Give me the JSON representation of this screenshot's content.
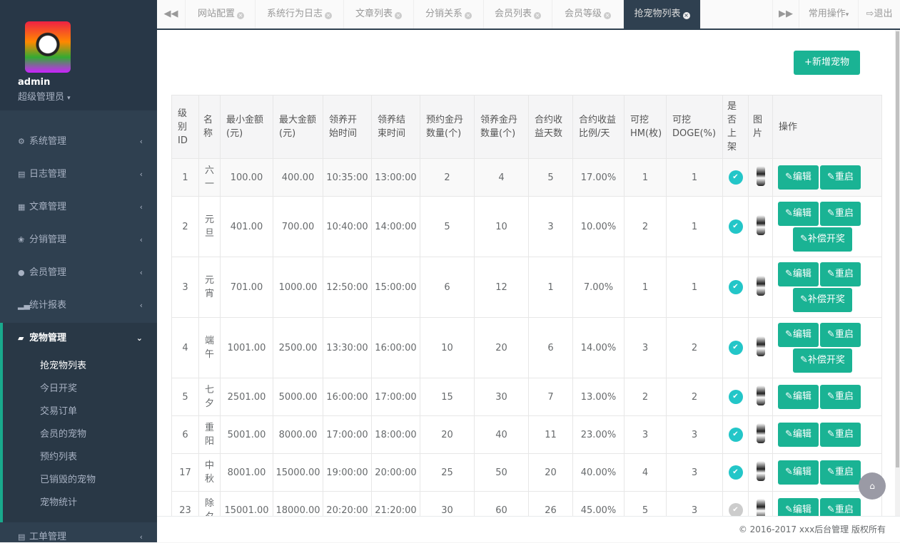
{
  "user": {
    "name": "admin",
    "role": "超级管理员"
  },
  "sidebar": {
    "items": [
      {
        "label": "系统管理",
        "icon": "gear-icon"
      },
      {
        "label": "日志管理",
        "icon": "list-icon"
      },
      {
        "label": "文章管理",
        "icon": "book-icon"
      },
      {
        "label": "分销管理",
        "icon": "cubes-icon"
      },
      {
        "label": "会员管理",
        "icon": "user-icon"
      },
      {
        "label": "统计报表",
        "icon": "signal-icon"
      },
      {
        "label": "宠物管理",
        "icon": "book-open-icon"
      },
      {
        "label": "工单管理",
        "icon": "list-icon"
      }
    ],
    "subitems": [
      "抢宠物列表",
      "今日开奖",
      "交易订单",
      "会员的宠物",
      "预约列表",
      "已销毁的宠物",
      "宠物统计"
    ]
  },
  "tabs": [
    "网站配置",
    "系统行为日志",
    "文章列表",
    "分销关系",
    "会员列表",
    "会员等级",
    "抢宠物列表"
  ],
  "topbar": {
    "common_ops": "常用操作",
    "logout": "退出"
  },
  "main": {
    "add_button": "+新增宠物",
    "columns": [
      "级别ID",
      "名称",
      "最小金额(元)",
      "最大金额(元)",
      "领养开始时间",
      "领养结束时间",
      "预约金丹数量(个)",
      "领养金丹数量(个)",
      "合约收益天数",
      "合约收益比例/天",
      "可挖HM(枚)",
      "可挖DOGE(%)",
      "是否上架",
      "图片",
      "操作"
    ],
    "actions": {
      "edit": "编辑",
      "restart": "重启",
      "compensate": "补偿开奖"
    },
    "rows": [
      {
        "id": "1",
        "name": "六一",
        "min": "100.00",
        "max": "400.00",
        "start": "10:35:00",
        "end": "13:00:00",
        "reserve": "2",
        "adopt": "4",
        "days": "5",
        "rate": "17.00%",
        "hm": "1",
        "doge": "1",
        "listed": true,
        "compensate": false
      },
      {
        "id": "2",
        "name": "元旦",
        "min": "401.00",
        "max": "700.00",
        "start": "10:40:00",
        "end": "14:00:00",
        "reserve": "5",
        "adopt": "10",
        "days": "3",
        "rate": "10.00%",
        "hm": "2",
        "doge": "1",
        "listed": true,
        "compensate": true
      },
      {
        "id": "3",
        "name": "元宵",
        "min": "701.00",
        "max": "1000.00",
        "start": "12:50:00",
        "end": "15:00:00",
        "reserve": "6",
        "adopt": "12",
        "days": "1",
        "rate": "7.00%",
        "hm": "1",
        "doge": "1",
        "listed": true,
        "compensate": true
      },
      {
        "id": "4",
        "name": "端午",
        "min": "1001.00",
        "max": "2500.00",
        "start": "13:30:00",
        "end": "16:00:00",
        "reserve": "10",
        "adopt": "20",
        "days": "6",
        "rate": "14.00%",
        "hm": "3",
        "doge": "2",
        "listed": true,
        "compensate": true
      },
      {
        "id": "5",
        "name": "七夕",
        "min": "2501.00",
        "max": "5000.00",
        "start": "16:00:00",
        "end": "17:00:00",
        "reserve": "15",
        "adopt": "30",
        "days": "7",
        "rate": "13.00%",
        "hm": "2",
        "doge": "2",
        "listed": true,
        "compensate": false
      },
      {
        "id": "6",
        "name": "重阳",
        "min": "5001.00",
        "max": "8000.00",
        "start": "17:00:00",
        "end": "18:00:00",
        "reserve": "20",
        "adopt": "40",
        "days": "11",
        "rate": "23.00%",
        "hm": "3",
        "doge": "3",
        "listed": true,
        "compensate": false
      },
      {
        "id": "17",
        "name": "中秋",
        "min": "8001.00",
        "max": "15000.00",
        "start": "19:00:00",
        "end": "20:00:00",
        "reserve": "25",
        "adopt": "50",
        "days": "20",
        "rate": "40.00%",
        "hm": "4",
        "doge": "3",
        "listed": true,
        "compensate": false
      },
      {
        "id": "23",
        "name": "除夕",
        "min": "15001.00",
        "max": "18000.00",
        "start": "20:20:00",
        "end": "21:20:00",
        "reserve": "30",
        "adopt": "60",
        "days": "26",
        "rate": "45.00%",
        "hm": "5",
        "doge": "3",
        "listed": false,
        "compensate": false
      }
    ]
  },
  "footer": "© 2016-2017 xxx后台管理 版权所有",
  "colors": {
    "accent": "#1ab394",
    "sidebar": "#2f4050",
    "check": "#23c6c8"
  }
}
